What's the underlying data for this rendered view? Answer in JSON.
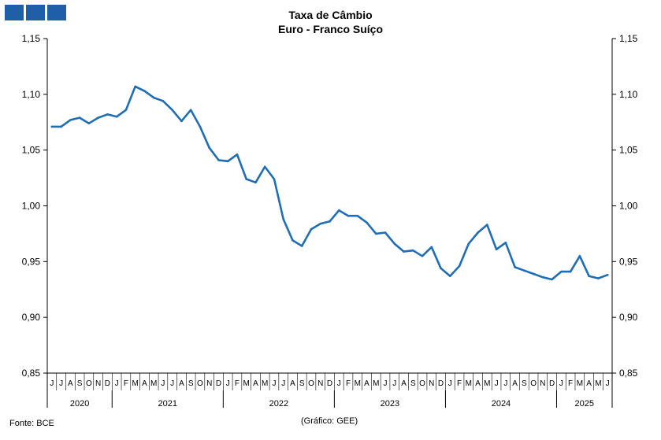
{
  "header": {
    "title_line1": "Taxa de Câmbio",
    "title_line2": "Euro - Franco Suíço"
  },
  "footer": {
    "source": "Fonte: BCE",
    "credit": "(Gráfico: GEE)"
  },
  "colors": {
    "line": "#1f6db5",
    "logo": "#1f5fa8"
  },
  "chart_data": {
    "type": "line",
    "title": "Taxa de Câmbio Euro - Franco Suíço",
    "xlabel": "",
    "ylabel": "",
    "ylim": [
      0.85,
      1.15
    ],
    "y_ticks": [
      "0,85",
      "0,90",
      "0,95",
      "1,00",
      "1,05",
      "1,10",
      "1,15"
    ],
    "grid": false,
    "legend": "none",
    "y_axis_both_sides": true,
    "years": [
      {
        "label": "2020",
        "months": 7
      },
      {
        "label": "2021",
        "months": 12
      },
      {
        "label": "2022",
        "months": 12
      },
      {
        "label": "2023",
        "months": 12
      },
      {
        "label": "2024",
        "months": 12
      },
      {
        "label": "2025",
        "months": 6
      }
    ],
    "month_labels": [
      "J",
      "J",
      "A",
      "S",
      "O",
      "N",
      "D",
      "J",
      "F",
      "M",
      "A",
      "M",
      "J",
      "J",
      "A",
      "S",
      "O",
      "N",
      "D",
      "J",
      "F",
      "M",
      "A",
      "M",
      "J",
      "J",
      "A",
      "S",
      "O",
      "N",
      "D",
      "J",
      "F",
      "M",
      "A",
      "M",
      "J",
      "J",
      "A",
      "S",
      "O",
      "N",
      "D",
      "J",
      "F",
      "M",
      "A",
      "M",
      "J",
      "J",
      "A",
      "S",
      "O",
      "N",
      "D",
      "J",
      "F",
      "M",
      "A",
      "M",
      "J"
    ],
    "series": [
      {
        "values": [
          1.071,
          1.071,
          1.077,
          1.079,
          1.074,
          1.079,
          1.082,
          1.08,
          1.086,
          1.107,
          1.103,
          1.097,
          1.094,
          1.086,
          1.076,
          1.086,
          1.071,
          1.052,
          1.041,
          1.04,
          1.046,
          1.024,
          1.021,
          1.035,
          1.024,
          0.988,
          0.969,
          0.964,
          0.979,
          0.984,
          0.986,
          0.996,
          0.991,
          0.991,
          0.985,
          0.975,
          0.976,
          0.966,
          0.959,
          0.96,
          0.955,
          0.963,
          0.944,
          0.937,
          0.946,
          0.966,
          0.976,
          0.983,
          0.961,
          0.967,
          0.945,
          0.942,
          0.939,
          0.936,
          0.934,
          0.941,
          0.941,
          0.955,
          0.937,
          0.935,
          0.938
        ]
      }
    ]
  }
}
